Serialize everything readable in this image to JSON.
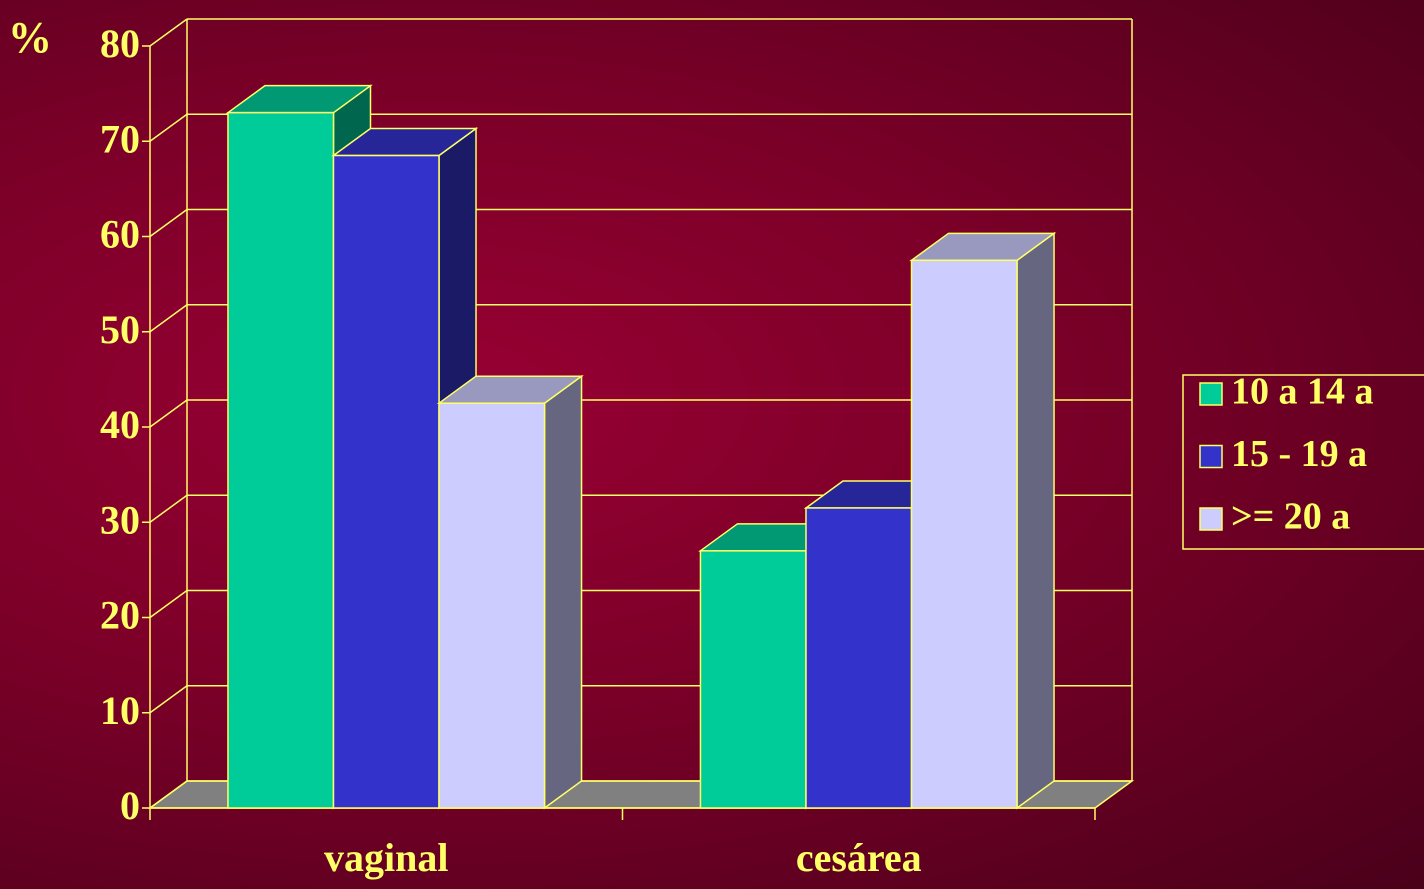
{
  "chart_data": {
    "type": "bar3d",
    "y_label": "%",
    "categories": [
      "vaginal",
      "cesárea"
    ],
    "series": [
      {
        "name": "10 a 14 a",
        "color": "#00cc99",
        "values": [
          73,
          27
        ]
      },
      {
        "name": "15 - 19 a",
        "color": "#3333cc",
        "values": [
          68.5,
          31.5
        ]
      },
      {
        "name": ">= 20 a",
        "color": "#ccccff",
        "values": [
          42.5,
          57.5
        ]
      }
    ],
    "ylim": [
      0,
      80
    ],
    "yticks": [
      0,
      10,
      20,
      30,
      40,
      50,
      60,
      70,
      80
    ],
    "grid": true,
    "legend": "right"
  }
}
